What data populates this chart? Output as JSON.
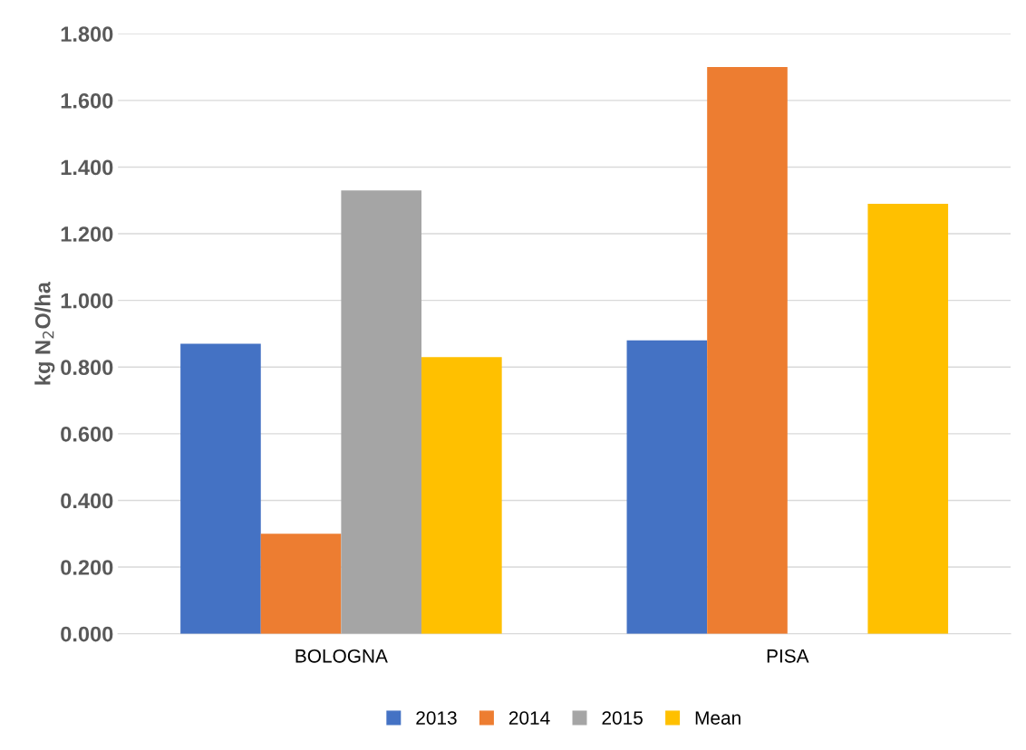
{
  "chart_data": {
    "type": "bar",
    "ylabel": "kg N$_{2}$O/ha",
    "categories": [
      "BOLOGNA",
      "PISA"
    ],
    "series": [
      {
        "name": "2013",
        "color": "#4472c4",
        "values": [
          0.87,
          0.88
        ]
      },
      {
        "name": "2014",
        "color": "#ed7d31",
        "values": [
          0.3,
          1.7
        ]
      },
      {
        "name": "2015",
        "color": "#a5a5a5",
        "values": [
          1.33,
          null
        ]
      },
      {
        "name": "Mean",
        "color": "#ffc000",
        "values": [
          0.83,
          1.29
        ]
      }
    ],
    "ylim": [
      0,
      1.8
    ],
    "yticks": [
      {
        "value": 0,
        "label": "0.000"
      },
      {
        "value": 0.2,
        "label": "0.200"
      },
      {
        "value": 0.4,
        "label": "0.400"
      },
      {
        "value": 0.6,
        "label": "0.600"
      },
      {
        "value": 0.8,
        "label": "0.800"
      },
      {
        "value": 1.0,
        "label": "1.000"
      },
      {
        "value": 1.2,
        "label": "1.200"
      },
      {
        "value": 1.4,
        "label": "1.400"
      },
      {
        "value": 1.6,
        "label": "1.600"
      },
      {
        "value": 1.8,
        "label": "1.800"
      }
    ],
    "grid": "y",
    "legend": "bottom"
  }
}
